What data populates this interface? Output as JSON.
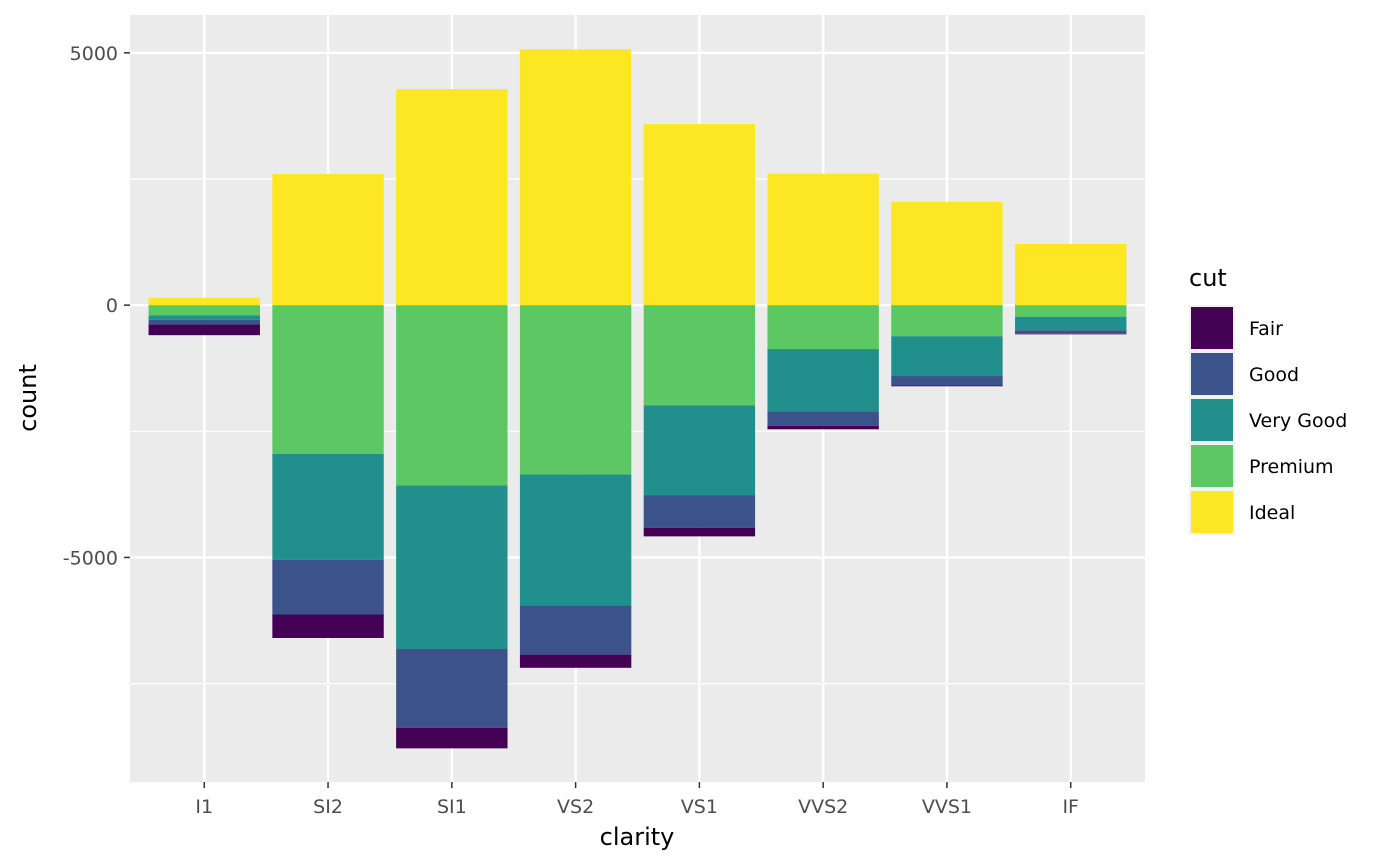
{
  "chart_data": {
    "type": "bar",
    "stacked": "diverging",
    "xlabel": "clarity",
    "ylabel": "count",
    "categories": [
      "I1",
      "SI2",
      "SI1",
      "VS2",
      "VS1",
      "VVS2",
      "VVS1",
      "IF"
    ],
    "y_ticks": [
      5000,
      0,
      -5000
    ],
    "y_tick_labels": [
      "5000",
      "0",
      "-5000"
    ],
    "ylim": [
      -9450,
      5750
    ],
    "grid": true,
    "legend": {
      "title": "cut",
      "position": "right",
      "entries": [
        "Fair",
        "Good",
        "Very Good",
        "Premium",
        "Ideal"
      ]
    },
    "series": [
      {
        "name": "Fair",
        "color": "#440154",
        "values": [
          -210,
          -466,
          -408,
          -261,
          -170,
          -69,
          -17,
          -9
        ]
      },
      {
        "name": "Good",
        "color": "#3B528B",
        "values": [
          -96,
          -1081,
          -1560,
          -978,
          -648,
          -286,
          -186,
          -71
        ]
      },
      {
        "name": "Very Good",
        "color": "#21908C",
        "values": [
          -84,
          -2100,
          -3240,
          -2591,
          -1775,
          -1235,
          -789,
          -268
        ]
      },
      {
        "name": "Premium",
        "color": "#5DC863",
        "values": [
          -205,
          -2949,
          -3575,
          -3357,
          -1989,
          -870,
          -616,
          -230
        ]
      },
      {
        "name": "Ideal",
        "color": "#FDE725",
        "values": [
          146,
          2598,
          4282,
          5071,
          3589,
          2606,
          2047,
          1212
        ]
      }
    ]
  }
}
